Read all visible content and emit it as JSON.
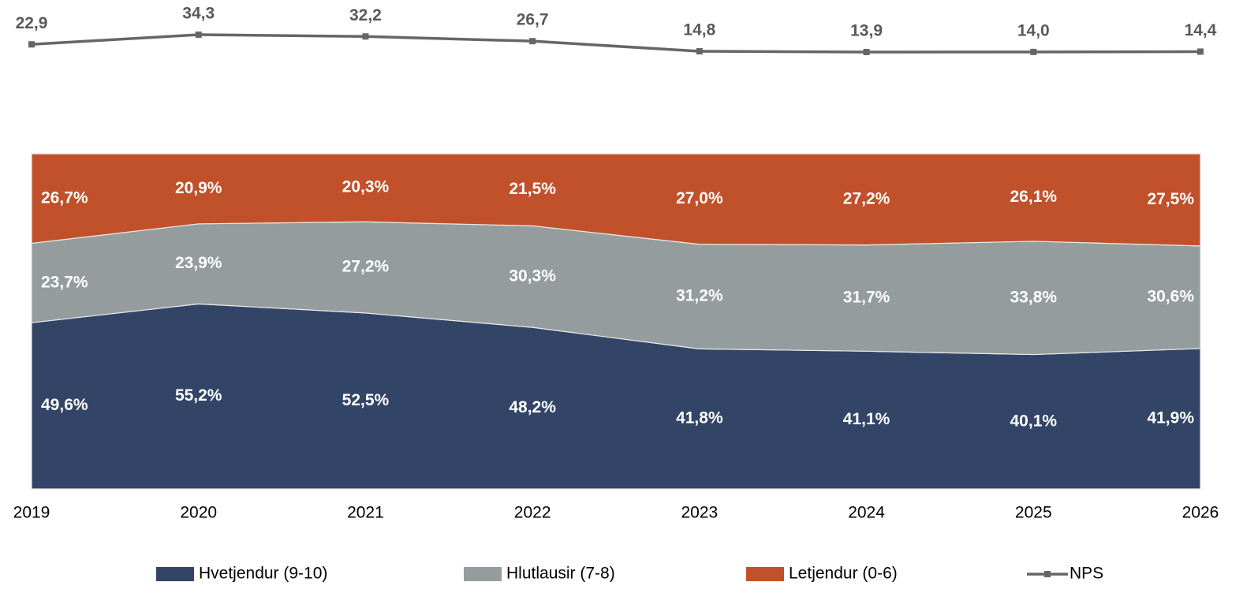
{
  "chart_data": {
    "type": "area",
    "stacked": true,
    "categories": [
      "2019",
      "2020",
      "2021",
      "2022",
      "2023",
      "2024",
      "2025",
      "2026"
    ],
    "ylim": [
      0,
      100
    ],
    "y2lim": [
      0,
      50
    ],
    "series": [
      {
        "name": "Hvetjendur (9-10)",
        "color": "#334567",
        "values": [
          49.6,
          55.2,
          52.5,
          48.2,
          41.8,
          41.1,
          40.1,
          41.9
        ],
        "value_labels": [
          "49,6%",
          "55,2%",
          "52,5%",
          "48,2%",
          "41,8%",
          "41,1%",
          "40,1%",
          "41,9%"
        ]
      },
      {
        "name": "Hlutlausir (7-8)",
        "color": "#959c9e",
        "values": [
          23.7,
          23.9,
          27.2,
          30.3,
          31.2,
          31.7,
          33.8,
          30.6
        ],
        "value_labels": [
          "23,7%",
          "23,9%",
          "27,2%",
          "30,3%",
          "31,2%",
          "31,7%",
          "33,8%",
          "30,6%"
        ]
      },
      {
        "name": "Letjendur (0-6)",
        "color": "#c0512a",
        "values": [
          26.7,
          20.9,
          20.3,
          21.5,
          27.0,
          27.2,
          26.1,
          27.5
        ],
        "value_labels": [
          "26,7%",
          "20,9%",
          "20,3%",
          "21,5%",
          "27,0%",
          "27,2%",
          "26,1%",
          "27,5%"
        ]
      },
      {
        "name": "NPS",
        "type": "line",
        "axis": "y2",
        "color": "#666666",
        "values": [
          22.9,
          34.3,
          32.2,
          26.7,
          14.8,
          13.9,
          14.0,
          14.4
        ],
        "value_labels": [
          "22,9",
          "34,3",
          "32,2",
          "26,7",
          "14,8",
          "13,9",
          "14,0",
          "14,4"
        ]
      }
    ]
  }
}
